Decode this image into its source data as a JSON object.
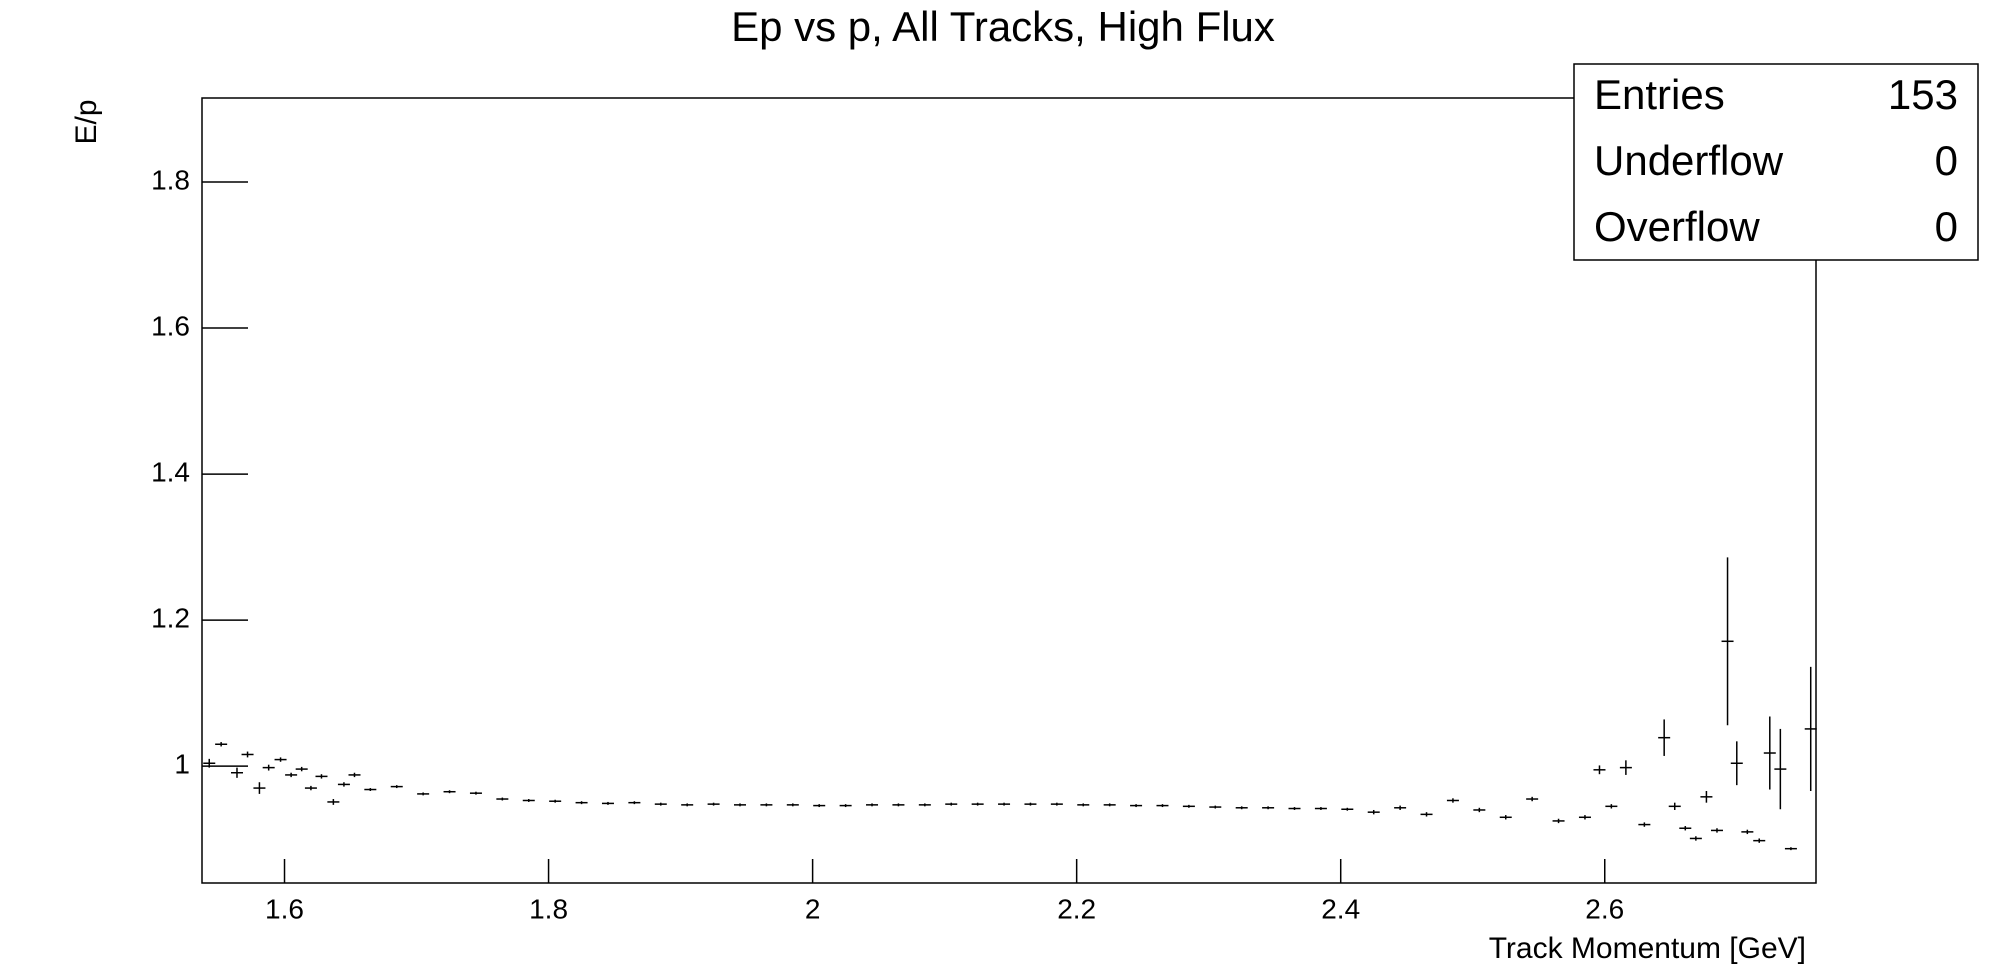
{
  "chart_data": {
    "type": "errorbar",
    "title": "Ep vs p, All Tracks, High Flux",
    "x_label": "Track Momentum [GeV]",
    "y_label": "E/p",
    "color": "#000000",
    "xlim": [
      1.5375,
      2.76
    ],
    "ylim": [
      0.84,
      1.915
    ],
    "xticks": [
      1.6,
      1.8,
      2,
      2.2,
      2.4,
      2.6
    ],
    "yticks": [
      1,
      1.2,
      1.4,
      1.6,
      1.8
    ],
    "x": [
      1.543,
      1.552,
      1.564,
      1.572,
      1.581,
      1.588,
      1.597,
      1.605,
      1.613,
      1.62,
      1.628,
      1.637,
      1.645,
      1.653,
      1.665,
      1.685,
      1.705,
      1.725,
      1.745,
      1.765,
      1.785,
      1.805,
      1.825,
      1.845,
      1.865,
      1.885,
      1.905,
      1.925,
      1.945,
      1.965,
      1.985,
      2.005,
      2.025,
      2.045,
      2.065,
      2.085,
      2.105,
      2.125,
      2.145,
      2.165,
      2.185,
      2.205,
      2.225,
      2.245,
      2.265,
      2.285,
      2.305,
      2.325,
      2.345,
      2.365,
      2.385,
      2.405,
      2.425,
      2.445,
      2.465,
      2.485,
      2.505,
      2.525,
      2.545,
      2.565,
      2.585,
      2.596,
      2.605,
      2.616,
      2.63,
      2.645,
      2.653,
      2.661,
      2.669,
      2.677,
      2.685,
      2.693,
      2.7,
      2.708,
      2.717,
      2.725,
      2.733,
      2.741,
      2.756
    ],
    "values": [
      1.004,
      1.03,
      0.991,
      1.016,
      0.97,
      0.998,
      1.009,
      0.988,
      0.996,
      0.97,
      0.986,
      0.951,
      0.975,
      0.988,
      0.968,
      0.972,
      0.962,
      0.965,
      0.963,
      0.955,
      0.953,
      0.952,
      0.95,
      0.949,
      0.95,
      0.948,
      0.947,
      0.948,
      0.947,
      0.947,
      0.947,
      0.946,
      0.946,
      0.947,
      0.947,
      0.947,
      0.948,
      0.948,
      0.948,
      0.948,
      0.948,
      0.947,
      0.947,
      0.946,
      0.946,
      0.945,
      0.944,
      0.943,
      0.943,
      0.942,
      0.942,
      0.941,
      0.937,
      0.943,
      0.934,
      0.953,
      0.94,
      0.93,
      0.955,
      0.925,
      0.93,
      0.995,
      0.945,
      0.998,
      0.92,
      1.039,
      0.945,
      0.915,
      0.901,
      0.958,
      0.912,
      1.171,
      1.004,
      0.91,
      0.898,
      1.018,
      0.996,
      0.887,
      1.051
    ],
    "errors": [
      0.006,
      0.003,
      0.007,
      0.004,
      0.008,
      0.004,
      0.003,
      0.003,
      0.003,
      0.003,
      0.003,
      0.004,
      0.003,
      0.003,
      0.002,
      0.002,
      0.002,
      0.002,
      0.002,
      0.002,
      0.002,
      0.002,
      0.002,
      0.002,
      0.002,
      0.002,
      0.002,
      0.002,
      0.002,
      0.002,
      0.002,
      0.002,
      0.002,
      0.002,
      0.002,
      0.002,
      0.002,
      0.002,
      0.002,
      0.002,
      0.002,
      0.002,
      0.002,
      0.002,
      0.002,
      0.002,
      0.002,
      0.002,
      0.002,
      0.002,
      0.002,
      0.002,
      0.003,
      0.003,
      0.003,
      0.003,
      0.003,
      0.003,
      0.003,
      0.003,
      0.003,
      0.006,
      0.003,
      0.01,
      0.003,
      0.025,
      0.005,
      0.003,
      0.003,
      0.008,
      0.003,
      0.115,
      0.03,
      0.003,
      0.003,
      0.05,
      0.055,
      0.002,
      0.085
    ],
    "stats": [
      {
        "label": "Entries",
        "value": 153
      },
      {
        "label": "Underflow",
        "value": 0
      },
      {
        "label": "Overflow",
        "value": 0
      }
    ]
  }
}
